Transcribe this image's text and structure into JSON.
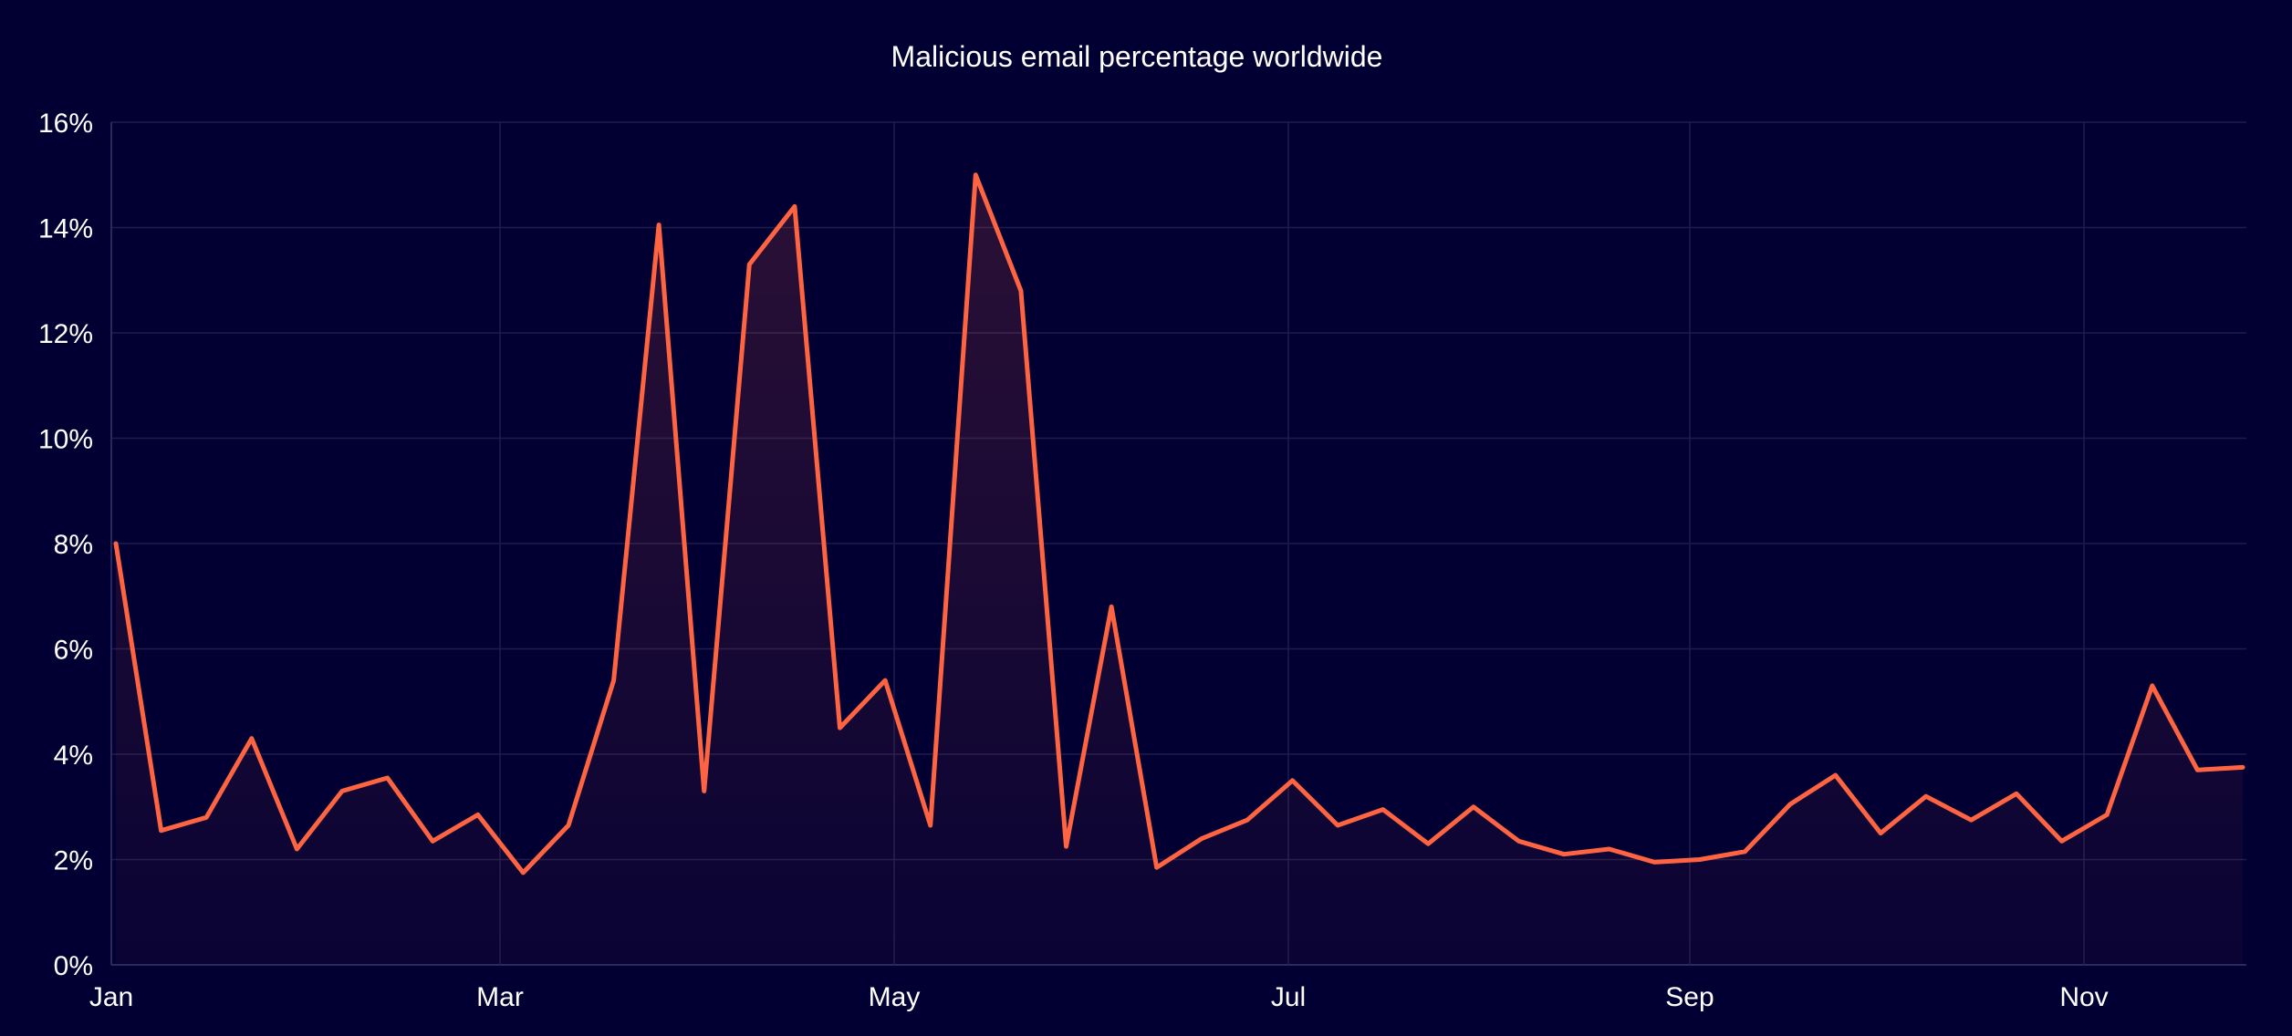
{
  "chart_data": {
    "type": "area",
    "title": "Malicious email percentage worldwide",
    "xlabel": "",
    "ylabel": "",
    "ylim": [
      0,
      16
    ],
    "y_ticks": [
      "0%",
      "2%",
      "4%",
      "6%",
      "8%",
      "10%",
      "12%",
      "14%",
      "16%"
    ],
    "x_ticks": [
      "Jan",
      "Mar",
      "May",
      "Jul",
      "Sep",
      "Nov"
    ],
    "grid": true,
    "legend": "none",
    "colors": {
      "background": "#020033",
      "line": "#ff6442",
      "grid": "#1e1c4a",
      "text": "#ffffff"
    },
    "series": [
      {
        "values": [
          8.0,
          2.55,
          2.8,
          4.3,
          2.2,
          3.3,
          3.55,
          2.35,
          2.85,
          1.75,
          2.65,
          5.4,
          14.05,
          3.3,
          13.3,
          14.4,
          4.5,
          5.4,
          2.65,
          15.0,
          12.8,
          2.25,
          6.8,
          1.85,
          2.4,
          2.75,
          3.5,
          2.65,
          2.95,
          2.3,
          3.0,
          2.35,
          2.1,
          2.2,
          1.95,
          2.0,
          2.15,
          3.05,
          3.6,
          2.5,
          3.2,
          2.75,
          3.25,
          2.35,
          2.85,
          5.3,
          3.7,
          3.75
        ]
      }
    ]
  }
}
